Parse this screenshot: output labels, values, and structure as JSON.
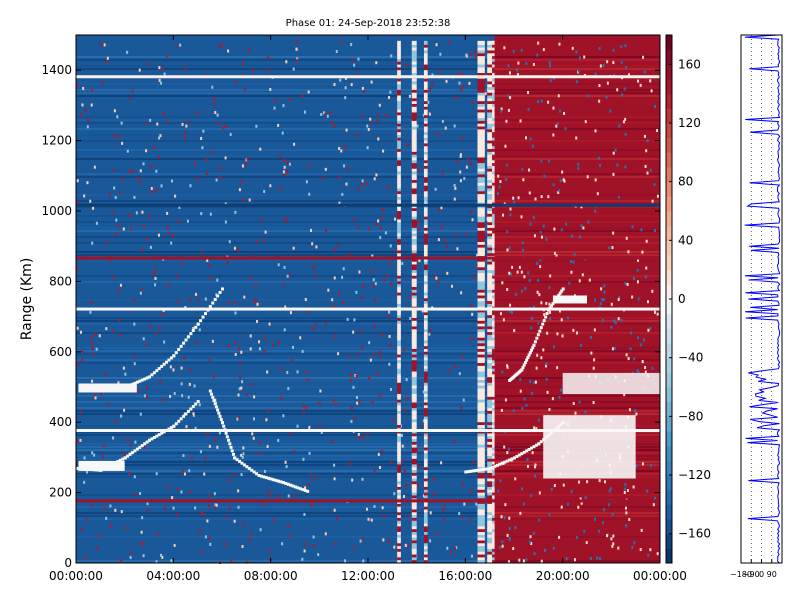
{
  "chart_data": {
    "type": "heatmap",
    "title": "Phase 01: 24-Sep-2018 23:52:38",
    "ylabel": "Range (Km)",
    "xlabel": "",
    "x_range": [
      "00:00:00",
      "24:00:00"
    ],
    "xticks": [
      "00:00:00",
      "04:00:00",
      "08:00:00",
      "12:00:00",
      "16:00:00",
      "20:00:00",
      "00:00:00"
    ],
    "ylim": [
      0,
      1500
    ],
    "yticks": [
      0,
      200,
      400,
      600,
      800,
      1000,
      1200,
      1400
    ],
    "colorbar": {
      "range": [
        -180,
        180
      ],
      "ticks": [
        160,
        120,
        80,
        40,
        0,
        -40,
        -80,
        -120,
        -160
      ],
      "tick_labels": [
        "160",
        "120",
        "80",
        "40",
        "0",
        "−40",
        "−80",
        "−120",
        "−160"
      ],
      "colormap": "RdBu_r"
    },
    "regions": [
      {
        "x_from_hours": 0,
        "x_to_hours": 17.2,
        "phase": -150,
        "description_color": "dark blue"
      },
      {
        "x_from_hours": 17.2,
        "x_to_hours": 24,
        "phase": 150,
        "description_color": "dark red"
      }
    ],
    "side_profile": {
      "type": "line",
      "color": "#0000ff",
      "xticks_labels": [
        "−180",
        "−90",
        "0",
        "90"
      ],
      "xlim": [
        -180,
        180
      ]
    }
  }
}
